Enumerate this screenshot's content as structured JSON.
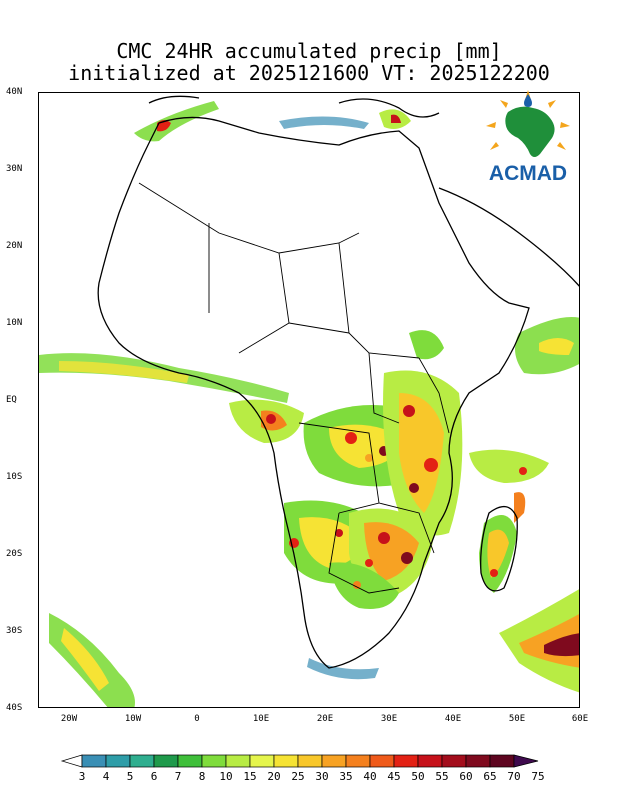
{
  "title": {
    "line1": "CMC 24HR accumulated precip [mm]",
    "line2": "initialized at 2025121600 VT: 2025122200"
  },
  "logo": {
    "text": "ACMAD",
    "colors": {
      "africa": "#1f8f3a",
      "text": "#1a5fa8",
      "rays": "#f4a51c"
    }
  },
  "map": {
    "lat_labels": [
      "40N",
      "30N",
      "20N",
      "10N",
      "EQ",
      "10S",
      "20S",
      "30S",
      "40S"
    ],
    "lon_labels": [
      "20W",
      "10W",
      "0",
      "10E",
      "20E",
      "30E",
      "40E",
      "50E",
      "60E"
    ],
    "extent": {
      "lon": [
        -25,
        60
      ],
      "lat": [
        -40,
        40
      ]
    }
  },
  "colorbar": {
    "labels": [
      "3",
      "4",
      "5",
      "6",
      "7",
      "8",
      "10",
      "15",
      "20",
      "25",
      "30",
      "35",
      "40",
      "45",
      "50",
      "55",
      "60",
      "65",
      "70",
      "75"
    ],
    "colors": [
      "#3a8fb5",
      "#2e9da8",
      "#2fae8f",
      "#1f9a4b",
      "#3fbf3a",
      "#7fdc3c",
      "#b8ec44",
      "#e5f54c",
      "#f6e334",
      "#f8c72a",
      "#f7a223",
      "#f4801e",
      "#ef5a1a",
      "#e32114",
      "#c6111a",
      "#a30d1c",
      "#7f0a1e",
      "#5e0520",
      "#3f0a4e"
    ]
  }
}
